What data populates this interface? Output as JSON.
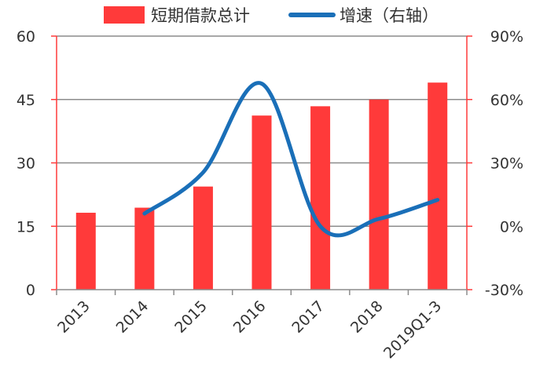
{
  "chart_data": {
    "type": "bar",
    "categories": [
      "2013",
      "2014",
      "2015",
      "2016",
      "2017",
      "2018",
      "2019Q1-3"
    ],
    "series": [
      {
        "name": "短期借款总计",
        "type": "bar",
        "axis": "left",
        "color": "#ff3a3a",
        "values": [
          18.2,
          19.4,
          24.4,
          41.2,
          43.4,
          45.0,
          49.0
        ]
      },
      {
        "name": "增速（右轴）",
        "type": "line",
        "axis": "right",
        "color": "#1a6fb8",
        "smooth": true,
        "values": [
          null,
          6.0,
          25.5,
          67.5,
          0.0,
          3.5,
          12.5
        ]
      }
    ],
    "y_left": {
      "min": 0,
      "max": 60,
      "ticks": [
        0,
        15,
        30,
        45,
        60
      ],
      "tick_labels": [
        "0",
        "15",
        "30",
        "45",
        "60"
      ]
    },
    "y_right": {
      "min": -30,
      "max": 90,
      "ticks": [
        -30,
        0,
        30,
        60,
        90
      ],
      "tick_labels": [
        "-30%",
        "0%",
        "30%",
        "60%",
        "90%"
      ]
    },
    "axis_color": "#ff3a3a",
    "grid": true,
    "legend_position": "top"
  }
}
